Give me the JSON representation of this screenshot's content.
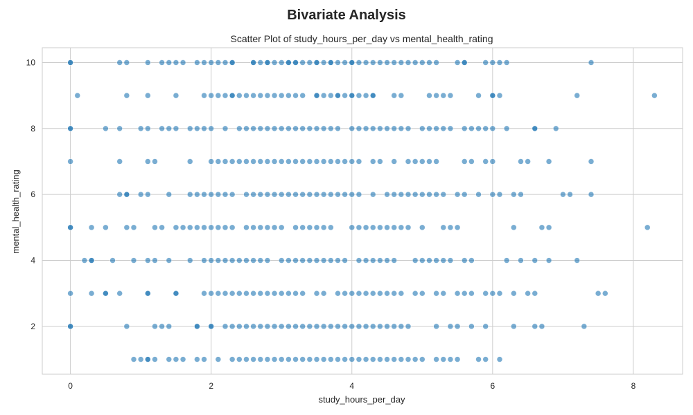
{
  "figure": {
    "suptitle": "Bivariate Analysis"
  },
  "chart_data": {
    "type": "scatter",
    "title": "Scatter Plot of study_hours_per_day vs mental_health_rating",
    "xlabel": "study_hours_per_day",
    "ylabel": "mental_health_rating",
    "xlim": [
      -0.4,
      8.7
    ],
    "ylim": [
      0.55,
      10.45
    ],
    "xticks": [
      0,
      2,
      4,
      6,
      8
    ],
    "yticks": [
      2,
      4,
      6,
      8,
      10
    ],
    "grid": true,
    "color": "#1f77b4",
    "alpha": 0.6,
    "points": [
      [
        0,
        10
      ],
      [
        0,
        10
      ],
      [
        0.7,
        10
      ],
      [
        0.8,
        10
      ],
      [
        1.1,
        10
      ],
      [
        1.3,
        10
      ],
      [
        1.4,
        10
      ],
      [
        1.5,
        10
      ],
      [
        1.6,
        10
      ],
      [
        1.8,
        10
      ],
      [
        1.9,
        10
      ],
      [
        2.0,
        10
      ],
      [
        2.1,
        10
      ],
      [
        2.2,
        10
      ],
      [
        2.3,
        10
      ],
      [
        2.3,
        10
      ],
      [
        2.6,
        10
      ],
      [
        2.6,
        10
      ],
      [
        2.7,
        10
      ],
      [
        2.8,
        10
      ],
      [
        2.8,
        10
      ],
      [
        2.9,
        10
      ],
      [
        3.0,
        10
      ],
      [
        3.1,
        10
      ],
      [
        3.1,
        10
      ],
      [
        3.2,
        10
      ],
      [
        3.2,
        10
      ],
      [
        3.3,
        10
      ],
      [
        3.4,
        10
      ],
      [
        3.5,
        10
      ],
      [
        3.5,
        10
      ],
      [
        3.6,
        10
      ],
      [
        3.7,
        10
      ],
      [
        3.7,
        10
      ],
      [
        3.8,
        10
      ],
      [
        3.9,
        10
      ],
      [
        4.0,
        10
      ],
      [
        4.0,
        10
      ],
      [
        4.1,
        10
      ],
      [
        4.2,
        10
      ],
      [
        4.3,
        10
      ],
      [
        4.4,
        10
      ],
      [
        4.5,
        10
      ],
      [
        4.6,
        10
      ],
      [
        4.7,
        10
      ],
      [
        4.8,
        10
      ],
      [
        4.9,
        10
      ],
      [
        5.0,
        10
      ],
      [
        5.1,
        10
      ],
      [
        5.2,
        10
      ],
      [
        5.5,
        10
      ],
      [
        5.6,
        10
      ],
      [
        5.6,
        10
      ],
      [
        5.9,
        10
      ],
      [
        6.0,
        10
      ],
      [
        6.1,
        10
      ],
      [
        6.2,
        10
      ],
      [
        7.4,
        10
      ],
      [
        0.1,
        9
      ],
      [
        0.8,
        9
      ],
      [
        1.1,
        9
      ],
      [
        1.5,
        9
      ],
      [
        1.9,
        9
      ],
      [
        2.0,
        9
      ],
      [
        2.1,
        9
      ],
      [
        2.2,
        9
      ],
      [
        2.3,
        9
      ],
      [
        2.3,
        9
      ],
      [
        2.4,
        9
      ],
      [
        2.5,
        9
      ],
      [
        2.6,
        9
      ],
      [
        2.7,
        9
      ],
      [
        2.8,
        9
      ],
      [
        2.9,
        9
      ],
      [
        3.0,
        9
      ],
      [
        3.1,
        9
      ],
      [
        3.2,
        9
      ],
      [
        3.3,
        9
      ],
      [
        3.5,
        9
      ],
      [
        3.5,
        9
      ],
      [
        3.6,
        9
      ],
      [
        3.7,
        9
      ],
      [
        3.8,
        9
      ],
      [
        3.8,
        9
      ],
      [
        3.9,
        9
      ],
      [
        4.0,
        9
      ],
      [
        4.0,
        9
      ],
      [
        4.1,
        9
      ],
      [
        4.2,
        9
      ],
      [
        4.3,
        9
      ],
      [
        4.3,
        9
      ],
      [
        4.6,
        9
      ],
      [
        4.7,
        9
      ],
      [
        5.1,
        9
      ],
      [
        5.2,
        9
      ],
      [
        5.3,
        9
      ],
      [
        5.4,
        9
      ],
      [
        5.8,
        9
      ],
      [
        6.0,
        9
      ],
      [
        6.0,
        9
      ],
      [
        6.1,
        9
      ],
      [
        7.2,
        9
      ],
      [
        8.3,
        9
      ],
      [
        0,
        8
      ],
      [
        0,
        8
      ],
      [
        0.5,
        8
      ],
      [
        0.7,
        8
      ],
      [
        1.0,
        8
      ],
      [
        1.1,
        8
      ],
      [
        1.3,
        8
      ],
      [
        1.4,
        8
      ],
      [
        1.5,
        8
      ],
      [
        1.7,
        8
      ],
      [
        1.8,
        8
      ],
      [
        1.9,
        8
      ],
      [
        2.0,
        8
      ],
      [
        2.2,
        8
      ],
      [
        2.4,
        8
      ],
      [
        2.5,
        8
      ],
      [
        2.6,
        8
      ],
      [
        2.7,
        8
      ],
      [
        2.8,
        8
      ],
      [
        2.9,
        8
      ],
      [
        3.0,
        8
      ],
      [
        3.1,
        8
      ],
      [
        3.2,
        8
      ],
      [
        3.3,
        8
      ],
      [
        3.4,
        8
      ],
      [
        3.5,
        8
      ],
      [
        3.6,
        8
      ],
      [
        3.7,
        8
      ],
      [
        3.8,
        8
      ],
      [
        4.0,
        8
      ],
      [
        4.1,
        8
      ],
      [
        4.2,
        8
      ],
      [
        4.3,
        8
      ],
      [
        4.4,
        8
      ],
      [
        4.5,
        8
      ],
      [
        4.6,
        8
      ],
      [
        4.7,
        8
      ],
      [
        4.8,
        8
      ],
      [
        5.0,
        8
      ],
      [
        5.1,
        8
      ],
      [
        5.2,
        8
      ],
      [
        5.3,
        8
      ],
      [
        5.4,
        8
      ],
      [
        5.6,
        8
      ],
      [
        5.7,
        8
      ],
      [
        5.8,
        8
      ],
      [
        5.9,
        8
      ],
      [
        6.0,
        8
      ],
      [
        6.2,
        8
      ],
      [
        6.6,
        8
      ],
      [
        6.6,
        8
      ],
      [
        6.9,
        8
      ],
      [
        0,
        7
      ],
      [
        0.7,
        7
      ],
      [
        1.1,
        7
      ],
      [
        1.2,
        7
      ],
      [
        1.7,
        7
      ],
      [
        2.0,
        7
      ],
      [
        2.1,
        7
      ],
      [
        2.2,
        7
      ],
      [
        2.3,
        7
      ],
      [
        2.4,
        7
      ],
      [
        2.5,
        7
      ],
      [
        2.6,
        7
      ],
      [
        2.7,
        7
      ],
      [
        2.8,
        7
      ],
      [
        2.9,
        7
      ],
      [
        3.0,
        7
      ],
      [
        3.1,
        7
      ],
      [
        3.2,
        7
      ],
      [
        3.3,
        7
      ],
      [
        3.4,
        7
      ],
      [
        3.5,
        7
      ],
      [
        3.6,
        7
      ],
      [
        3.7,
        7
      ],
      [
        3.8,
        7
      ],
      [
        3.9,
        7
      ],
      [
        4.0,
        7
      ],
      [
        4.1,
        7
      ],
      [
        4.3,
        7
      ],
      [
        4.4,
        7
      ],
      [
        4.6,
        7
      ],
      [
        4.8,
        7
      ],
      [
        4.9,
        7
      ],
      [
        5.0,
        7
      ],
      [
        5.1,
        7
      ],
      [
        5.2,
        7
      ],
      [
        5.6,
        7
      ],
      [
        5.7,
        7
      ],
      [
        5.9,
        7
      ],
      [
        6.0,
        7
      ],
      [
        6.4,
        7
      ],
      [
        6.5,
        7
      ],
      [
        6.8,
        7
      ],
      [
        7.4,
        7
      ],
      [
        0.7,
        6
      ],
      [
        0.8,
        6
      ],
      [
        0.8,
        6
      ],
      [
        1.0,
        6
      ],
      [
        1.1,
        6
      ],
      [
        1.4,
        6
      ],
      [
        1.7,
        6
      ],
      [
        1.8,
        6
      ],
      [
        1.9,
        6
      ],
      [
        2.0,
        6
      ],
      [
        2.1,
        6
      ],
      [
        2.2,
        6
      ],
      [
        2.3,
        6
      ],
      [
        2.5,
        6
      ],
      [
        2.6,
        6
      ],
      [
        2.7,
        6
      ],
      [
        2.8,
        6
      ],
      [
        2.9,
        6
      ],
      [
        3.0,
        6
      ],
      [
        3.1,
        6
      ],
      [
        3.2,
        6
      ],
      [
        3.3,
        6
      ],
      [
        3.4,
        6
      ],
      [
        3.5,
        6
      ],
      [
        3.6,
        6
      ],
      [
        3.7,
        6
      ],
      [
        3.8,
        6
      ],
      [
        3.9,
        6
      ],
      [
        4.0,
        6
      ],
      [
        4.1,
        6
      ],
      [
        4.3,
        6
      ],
      [
        4.5,
        6
      ],
      [
        4.6,
        6
      ],
      [
        4.7,
        6
      ],
      [
        4.8,
        6
      ],
      [
        4.9,
        6
      ],
      [
        5.0,
        6
      ],
      [
        5.1,
        6
      ],
      [
        5.2,
        6
      ],
      [
        5.3,
        6
      ],
      [
        5.5,
        6
      ],
      [
        5.6,
        6
      ],
      [
        5.8,
        6
      ],
      [
        6.0,
        6
      ],
      [
        6.1,
        6
      ],
      [
        6.3,
        6
      ],
      [
        6.4,
        6
      ],
      [
        7.0,
        6
      ],
      [
        7.1,
        6
      ],
      [
        7.4,
        6
      ],
      [
        0,
        5
      ],
      [
        0,
        5
      ],
      [
        0.3,
        5
      ],
      [
        0.5,
        5
      ],
      [
        0.8,
        5
      ],
      [
        0.9,
        5
      ],
      [
        1.2,
        5
      ],
      [
        1.3,
        5
      ],
      [
        1.5,
        5
      ],
      [
        1.6,
        5
      ],
      [
        1.7,
        5
      ],
      [
        1.8,
        5
      ],
      [
        1.9,
        5
      ],
      [
        2.0,
        5
      ],
      [
        2.1,
        5
      ],
      [
        2.2,
        5
      ],
      [
        2.3,
        5
      ],
      [
        2.5,
        5
      ],
      [
        2.6,
        5
      ],
      [
        2.7,
        5
      ],
      [
        2.8,
        5
      ],
      [
        2.9,
        5
      ],
      [
        3.0,
        5
      ],
      [
        3.2,
        5
      ],
      [
        3.3,
        5
      ],
      [
        3.4,
        5
      ],
      [
        3.5,
        5
      ],
      [
        3.6,
        5
      ],
      [
        3.7,
        5
      ],
      [
        4.0,
        5
      ],
      [
        4.1,
        5
      ],
      [
        4.2,
        5
      ],
      [
        4.3,
        5
      ],
      [
        4.4,
        5
      ],
      [
        4.5,
        5
      ],
      [
        4.6,
        5
      ],
      [
        4.7,
        5
      ],
      [
        4.8,
        5
      ],
      [
        5.0,
        5
      ],
      [
        5.3,
        5
      ],
      [
        5.4,
        5
      ],
      [
        5.5,
        5
      ],
      [
        6.3,
        5
      ],
      [
        6.7,
        5
      ],
      [
        6.8,
        5
      ],
      [
        8.2,
        5
      ],
      [
        0.2,
        4
      ],
      [
        0.3,
        4
      ],
      [
        0.3,
        4
      ],
      [
        0.6,
        4
      ],
      [
        0.9,
        4
      ],
      [
        1.1,
        4
      ],
      [
        1.2,
        4
      ],
      [
        1.4,
        4
      ],
      [
        1.7,
        4
      ],
      [
        1.9,
        4
      ],
      [
        2.0,
        4
      ],
      [
        2.1,
        4
      ],
      [
        2.2,
        4
      ],
      [
        2.3,
        4
      ],
      [
        2.4,
        4
      ],
      [
        2.5,
        4
      ],
      [
        2.6,
        4
      ],
      [
        2.7,
        4
      ],
      [
        2.8,
        4
      ],
      [
        3.0,
        4
      ],
      [
        3.1,
        4
      ],
      [
        3.2,
        4
      ],
      [
        3.3,
        4
      ],
      [
        3.4,
        4
      ],
      [
        3.5,
        4
      ],
      [
        3.6,
        4
      ],
      [
        3.7,
        4
      ],
      [
        3.8,
        4
      ],
      [
        3.9,
        4
      ],
      [
        4.1,
        4
      ],
      [
        4.2,
        4
      ],
      [
        4.3,
        4
      ],
      [
        4.4,
        4
      ],
      [
        4.5,
        4
      ],
      [
        4.6,
        4
      ],
      [
        4.9,
        4
      ],
      [
        5.0,
        4
      ],
      [
        5.1,
        4
      ],
      [
        5.2,
        4
      ],
      [
        5.3,
        4
      ],
      [
        5.4,
        4
      ],
      [
        5.6,
        4
      ],
      [
        5.7,
        4
      ],
      [
        6.2,
        4
      ],
      [
        6.4,
        4
      ],
      [
        6.6,
        4
      ],
      [
        6.8,
        4
      ],
      [
        7.2,
        4
      ],
      [
        0,
        3
      ],
      [
        0.3,
        3
      ],
      [
        0.5,
        3
      ],
      [
        0.5,
        3
      ],
      [
        0.7,
        3
      ],
      [
        1.1,
        3
      ],
      [
        1.1,
        3
      ],
      [
        1.5,
        3
      ],
      [
        1.5,
        3
      ],
      [
        1.9,
        3
      ],
      [
        2.0,
        3
      ],
      [
        2.1,
        3
      ],
      [
        2.2,
        3
      ],
      [
        2.3,
        3
      ],
      [
        2.4,
        3
      ],
      [
        2.5,
        3
      ],
      [
        2.6,
        3
      ],
      [
        2.7,
        3
      ],
      [
        2.8,
        3
      ],
      [
        2.9,
        3
      ],
      [
        3.0,
        3
      ],
      [
        3.1,
        3
      ],
      [
        3.2,
        3
      ],
      [
        3.3,
        3
      ],
      [
        3.5,
        3
      ],
      [
        3.6,
        3
      ],
      [
        3.8,
        3
      ],
      [
        3.9,
        3
      ],
      [
        4.0,
        3
      ],
      [
        4.1,
        3
      ],
      [
        4.2,
        3
      ],
      [
        4.3,
        3
      ],
      [
        4.4,
        3
      ],
      [
        4.5,
        3
      ],
      [
        4.6,
        3
      ],
      [
        4.7,
        3
      ],
      [
        4.9,
        3
      ],
      [
        5.0,
        3
      ],
      [
        5.2,
        3
      ],
      [
        5.3,
        3
      ],
      [
        5.5,
        3
      ],
      [
        5.6,
        3
      ],
      [
        5.7,
        3
      ],
      [
        5.9,
        3
      ],
      [
        6.0,
        3
      ],
      [
        6.1,
        3
      ],
      [
        6.3,
        3
      ],
      [
        6.5,
        3
      ],
      [
        6.6,
        3
      ],
      [
        7.5,
        3
      ],
      [
        7.6,
        3
      ],
      [
        0,
        2
      ],
      [
        0,
        2
      ],
      [
        0.8,
        2
      ],
      [
        1.2,
        2
      ],
      [
        1.3,
        2
      ],
      [
        1.4,
        2
      ],
      [
        1.8,
        2
      ],
      [
        1.8,
        2
      ],
      [
        2.0,
        2
      ],
      [
        2.0,
        2
      ],
      [
        2.2,
        2
      ],
      [
        2.3,
        2
      ],
      [
        2.4,
        2
      ],
      [
        2.5,
        2
      ],
      [
        2.6,
        2
      ],
      [
        2.7,
        2
      ],
      [
        2.8,
        2
      ],
      [
        2.9,
        2
      ],
      [
        3.0,
        2
      ],
      [
        3.1,
        2
      ],
      [
        3.2,
        2
      ],
      [
        3.3,
        2
      ],
      [
        3.4,
        2
      ],
      [
        3.5,
        2
      ],
      [
        3.6,
        2
      ],
      [
        3.7,
        2
      ],
      [
        3.8,
        2
      ],
      [
        3.9,
        2
      ],
      [
        4.0,
        2
      ],
      [
        4.1,
        2
      ],
      [
        4.2,
        2
      ],
      [
        4.3,
        2
      ],
      [
        4.4,
        2
      ],
      [
        4.5,
        2
      ],
      [
        4.6,
        2
      ],
      [
        4.7,
        2
      ],
      [
        4.8,
        2
      ],
      [
        5.2,
        2
      ],
      [
        5.4,
        2
      ],
      [
        5.5,
        2
      ],
      [
        5.7,
        2
      ],
      [
        5.9,
        2
      ],
      [
        6.3,
        2
      ],
      [
        6.6,
        2
      ],
      [
        6.7,
        2
      ],
      [
        7.3,
        2
      ],
      [
        0.9,
        1
      ],
      [
        1.0,
        1
      ],
      [
        1.1,
        1
      ],
      [
        1.1,
        1
      ],
      [
        1.2,
        1
      ],
      [
        1.4,
        1
      ],
      [
        1.5,
        1
      ],
      [
        1.6,
        1
      ],
      [
        1.8,
        1
      ],
      [
        1.9,
        1
      ],
      [
        2.1,
        1
      ],
      [
        2.3,
        1
      ],
      [
        2.4,
        1
      ],
      [
        2.5,
        1
      ],
      [
        2.6,
        1
      ],
      [
        2.7,
        1
      ],
      [
        2.8,
        1
      ],
      [
        2.9,
        1
      ],
      [
        3.0,
        1
      ],
      [
        3.1,
        1
      ],
      [
        3.2,
        1
      ],
      [
        3.3,
        1
      ],
      [
        3.4,
        1
      ],
      [
        3.5,
        1
      ],
      [
        3.6,
        1
      ],
      [
        3.7,
        1
      ],
      [
        3.8,
        1
      ],
      [
        3.9,
        1
      ],
      [
        4.0,
        1
      ],
      [
        4.1,
        1
      ],
      [
        4.2,
        1
      ],
      [
        4.3,
        1
      ],
      [
        4.4,
        1
      ],
      [
        4.5,
        1
      ],
      [
        4.6,
        1
      ],
      [
        4.7,
        1
      ],
      [
        4.8,
        1
      ],
      [
        4.9,
        1
      ],
      [
        5.0,
        1
      ],
      [
        5.2,
        1
      ],
      [
        5.3,
        1
      ],
      [
        5.4,
        1
      ],
      [
        5.5,
        1
      ],
      [
        5.8,
        1
      ],
      [
        5.9,
        1
      ],
      [
        6.1,
        1
      ]
    ]
  }
}
